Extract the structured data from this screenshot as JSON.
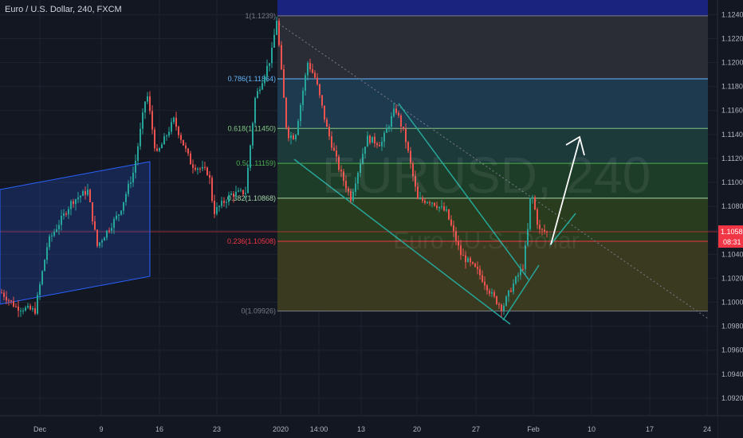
{
  "header": {
    "symbol_title": "Euro / U.S. Dollar, 240, FXCM"
  },
  "watermark": {
    "ticker": "EURUSD, 240",
    "name": "Euro / U.S. Dollar"
  },
  "price_scale": {
    "last_price": "1.10588",
    "countdown": "08:31",
    "last_price_color": "#f23645"
  },
  "chart_data": {
    "type": "candlestick",
    "title": "Euro / U.S. Dollar, 240, FXCM",
    "ylim": [
      1.09053,
      1.12522
    ],
    "y_ticks": [
      "1.12400",
      "1.12200",
      "1.12000",
      "1.11800",
      "1.11600",
      "1.11400",
      "1.11200",
      "1.11000",
      "1.10800",
      "1.10600",
      "1.10400",
      "1.10200",
      "1.10000",
      "1.09800",
      "1.09600",
      "1.09400",
      "1.09200"
    ],
    "x_ticks": [
      "Dec",
      "9",
      "16",
      "23",
      "2020",
      "14:00",
      "13",
      "20",
      "27",
      "Feb",
      "10",
      "17",
      "24"
    ],
    "fibonacci": [
      {
        "ratio": "1",
        "price": 1.1239,
        "label": "1(1.1239)",
        "color": "#787b86"
      },
      {
        "ratio": "0.786",
        "price": 1.11864,
        "label": "0.786(1.11864)",
        "color": "#64b5f6"
      },
      {
        "ratio": "0.618",
        "price": 1.1145,
        "label": "0.618(1.11450)",
        "color": "#81c784"
      },
      {
        "ratio": "0.5",
        "price": 1.11159,
        "label": "0.5(1.11159)",
        "color": "#4caf50"
      },
      {
        "ratio": "0.382",
        "price": 1.10868,
        "label": "0.382(1.10868)",
        "color": "#a5d6a7"
      },
      {
        "ratio": "0.236",
        "price": 1.10508,
        "label": "0.236(1.10508)",
        "color": "#f23645"
      },
      {
        "ratio": "0",
        "price": 1.09926,
        "label": "0(1.09926)",
        "color": "#787b86"
      }
    ],
    "fib_zone_colors": [
      "#2a2d36",
      "#1e3a4f",
      "#1d3a3a",
      "#1e3d29",
      "#293d1e",
      "#3a3a20",
      "#3d1f24"
    ],
    "top_zone_color": "#1a237e",
    "colors": {
      "up": "#26a69a",
      "down": "#ef5350",
      "channel": "#2962ff",
      "wedge": "#26a69a",
      "arrow": "#ffffff",
      "grid": "#1f2230"
    }
  }
}
